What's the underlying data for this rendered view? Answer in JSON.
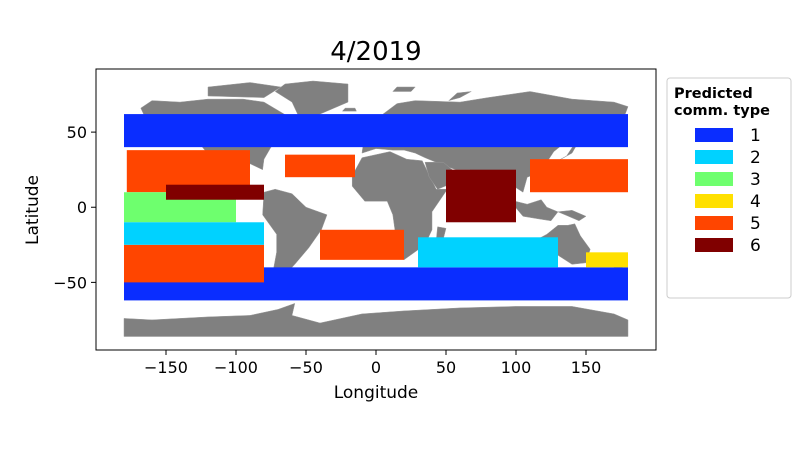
{
  "chart_data": {
    "type": "scatter",
    "title": "4/2019",
    "xlabel": "Longitude",
    "ylabel": "Latitude",
    "xlim": [
      -200,
      200
    ],
    "ylim": [
      -95,
      92
    ],
    "xticks": [
      -150,
      -100,
      -50,
      0,
      50,
      100,
      150
    ],
    "yticks": [
      -50,
      0,
      50
    ],
    "xtick_labels": [
      "−150",
      "−100",
      "−50",
      "0",
      "50",
      "100",
      "150"
    ],
    "ytick_labels": [
      "−50",
      "0",
      "50"
    ],
    "grid": false,
    "legend": {
      "title_lines": [
        "Predicted",
        "comm. type"
      ],
      "placement": "outside-right",
      "entries": [
        {
          "label": "1",
          "color": "#0a2dff"
        },
        {
          "label": "2",
          "color": "#00d2ff"
        },
        {
          "label": "3",
          "color": "#6eff6e"
        },
        {
          "label": "4",
          "color": "#ffe000"
        },
        {
          "label": "5",
          "color": "#ff4500"
        },
        {
          "label": "6",
          "color": "#800000"
        }
      ]
    },
    "regions": [
      {
        "type": "1",
        "lon": [
          -180,
          180
        ],
        "lat": [
          40,
          62
        ]
      },
      {
        "type": "1",
        "lon": [
          -180,
          180
        ],
        "lat": [
          -62,
          -40
        ]
      },
      {
        "type": "5",
        "lon": [
          -178,
          -90
        ],
        "lat": [
          10,
          38
        ]
      },
      {
        "type": "5",
        "lon": [
          110,
          180
        ],
        "lat": [
          10,
          32
        ]
      },
      {
        "type": "5",
        "lon": [
          -65,
          -15
        ],
        "lat": [
          20,
          35
        ]
      },
      {
        "type": "5",
        "lon": [
          -180,
          -80
        ],
        "lat": [
          -50,
          -25
        ]
      },
      {
        "type": "5",
        "lon": [
          -40,
          20
        ],
        "lat": [
          -35,
          -15
        ]
      },
      {
        "type": "3",
        "lon": [
          -180,
          -100
        ],
        "lat": [
          -10,
          10
        ]
      },
      {
        "type": "2",
        "lon": [
          -180,
          -80
        ],
        "lat": [
          -25,
          -10
        ]
      },
      {
        "type": "2",
        "lon": [
          30,
          130
        ],
        "lat": [
          -40,
          -20
        ]
      },
      {
        "type": "6",
        "lon": [
          50,
          100
        ],
        "lat": [
          -10,
          25
        ]
      },
      {
        "type": "6",
        "lon": [
          -150,
          -80
        ],
        "lat": [
          5,
          15
        ]
      },
      {
        "type": "4",
        "lon": [
          150,
          180
        ],
        "lat": [
          -40,
          -30
        ]
      }
    ]
  }
}
